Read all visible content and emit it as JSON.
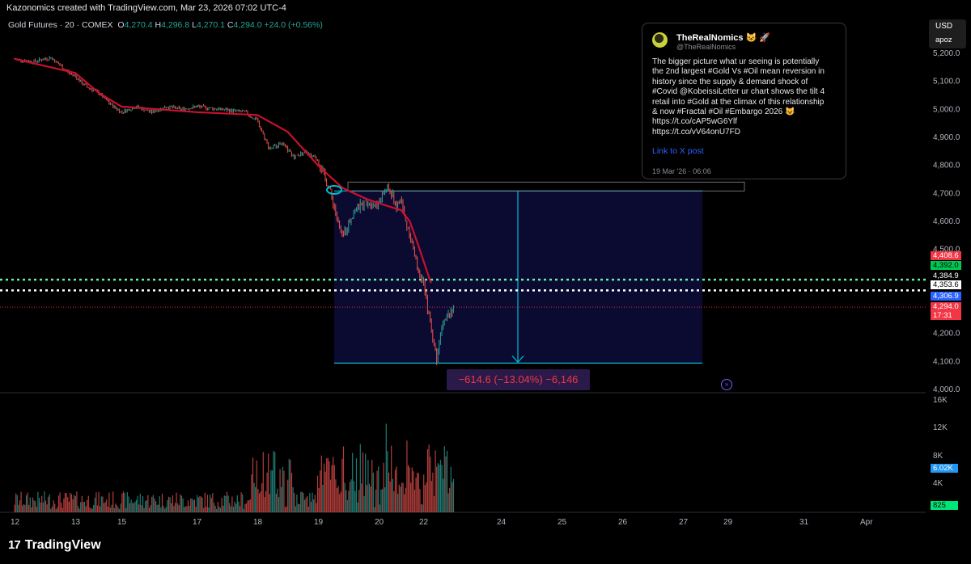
{
  "header": {
    "attribution": "Kazonomics created with TradingView.com, Mar 23, 2026 07:02 UTC-4"
  },
  "legend": {
    "symbol": "Gold Futures · 20 · COMEX",
    "open_label": "O",
    "open": "4,270.4",
    "high_label": "H",
    "high": "4,296.8",
    "low_label": "L",
    "low": "4,270.1",
    "close_label": "C",
    "close": "4,294.0",
    "change": "+24.0 (+0.56%)"
  },
  "currency_box": {
    "currency": "USD",
    "user": "apoz"
  },
  "tweet": {
    "name": "TheRealNomics 😺 🚀",
    "handle": "@TheRealNomics",
    "text": "The bigger picture what ur seeing is potentially\nthe 2nd largest #Gold Vs #Oil mean reversion in\nhistory since the supply & demand shock of\n#Covid @KobeissiLetter ur chart shows the tilt 4\nretail into #Gold at the climax of this relationship\n& now #Fractal #Oil #Embargo 2026 😺\nhttps://t.co/cAP5wG6Ylf\nhttps://t.co/vV64onU7FD",
    "link_label": "Link to X post",
    "date": "19 Mar '26 · 06:06"
  },
  "price_tags": [
    {
      "label": "4,408.6",
      "bg": "#f23645",
      "fg": "#ffffff"
    },
    {
      "label": "4,392.0",
      "bg": "#00c853",
      "fg": "#000000"
    },
    {
      "label": "4,384.9",
      "bg": "#000000",
      "fg": "#ffffff"
    },
    {
      "label": "4,353.6",
      "bg": "#ffffff",
      "fg": "#000000"
    },
    {
      "label": "4,306.9",
      "bg": "#2962ff",
      "fg": "#ffffff"
    },
    {
      "label": "4,294.0",
      "bg": "#f23645",
      "fg": "#ffffff"
    },
    {
      "label": "17:31",
      "bg": "#f23645",
      "fg": "#ffffff"
    }
  ],
  "volume_tags": [
    {
      "label": "6.02K",
      "bg": "#2196f3",
      "fg": "#ffffff"
    },
    {
      "label": "825",
      "bg": "#00e676",
      "fg": "#000000"
    }
  ],
  "measure": {
    "label": "−614.6 (−13.04%) −6,146"
  },
  "footer": {
    "brand": "TradingView"
  },
  "colors": {
    "up": "#26a69a",
    "down": "#ef5350",
    "ma": "#c8102e",
    "range": "#00bcd4"
  },
  "chart_data": {
    "type": "candlestick",
    "title": "Gold Futures · 20 · COMEX",
    "y_ticks": [
      "5,200.0",
      "5,100.0",
      "5,000.0",
      "4,900.0",
      "4,800.0",
      "4,700.0",
      "4,600.0",
      "4,500.0",
      "4,400.0",
      "4,300.0",
      "4,200.0",
      "4,100.0",
      "4,000.0"
    ],
    "y_range": [
      4000,
      5200
    ],
    "x_ticks": [
      "12",
      "13",
      "15",
      "17",
      "18",
      "19",
      "20",
      "22",
      "24",
      "25",
      "26",
      "27",
      "29",
      "31",
      "Apr"
    ],
    "volume_ticks": [
      "16K",
      "12K",
      "8K",
      "4K"
    ],
    "price_path": [
      [
        12,
        5180
      ],
      [
        12.3,
        5170
      ],
      [
        12.6,
        5185
      ],
      [
        12.9,
        5130
      ],
      [
        13.2,
        5100
      ],
      [
        13.5,
        5080
      ],
      [
        14,
        5060
      ],
      [
        14.5,
        5020
      ],
      [
        15,
        4990
      ],
      [
        15.4,
        5010
      ],
      [
        15.8,
        4990
      ],
      [
        16.2,
        5010
      ],
      [
        16.6,
        5000
      ],
      [
        17,
        5010
      ],
      [
        17.4,
        5000
      ],
      [
        17.8,
        4990
      ],
      [
        18,
        4960
      ],
      [
        18.2,
        4860
      ],
      [
        18.4,
        4880
      ],
      [
        18.6,
        4830
      ],
      [
        18.8,
        4850
      ],
      [
        19,
        4820
      ],
      [
        19.2,
        4710
      ],
      [
        19.4,
        4540
      ],
      [
        19.6,
        4640
      ],
      [
        19.8,
        4670
      ],
      [
        20,
        4660
      ],
      [
        20.2,
        4700
      ],
      [
        20.4,
        4720
      ],
      [
        20.6,
        4700
      ],
      [
        20.8,
        4650
      ],
      [
        21,
        4680
      ],
      [
        21.2,
        4600
      ],
      [
        21.4,
        4560
      ],
      [
        21.6,
        4480
      ],
      [
        21.8,
        4420
      ],
      [
        22,
        4380
      ],
      [
        22.2,
        4220
      ],
      [
        22.35,
        4110
      ],
      [
        22.5,
        4250
      ],
      [
        22.7,
        4280
      ],
      [
        22.8,
        4294
      ]
    ],
    "ma_path": [
      [
        12,
        5180
      ],
      [
        13,
        5130
      ],
      [
        14,
        5060
      ],
      [
        15,
        5010
      ],
      [
        16,
        5000
      ],
      [
        17,
        4990
      ],
      [
        18,
        4980
      ],
      [
        18.5,
        4920
      ],
      [
        19,
        4800
      ],
      [
        19.4,
        4720
      ],
      [
        19.8,
        4680
      ],
      [
        20.2,
        4660
      ],
      [
        20.6,
        4650
      ],
      [
        21,
        4640
      ],
      [
        21.4,
        4600
      ],
      [
        21.8,
        4510
      ],
      [
        22.2,
        4380
      ]
    ],
    "measure_range": {
      "from": 4708.7,
      "to": 4094.1,
      "change": -614.6,
      "change_pct": -13.04,
      "ticks": -6146
    }
  }
}
